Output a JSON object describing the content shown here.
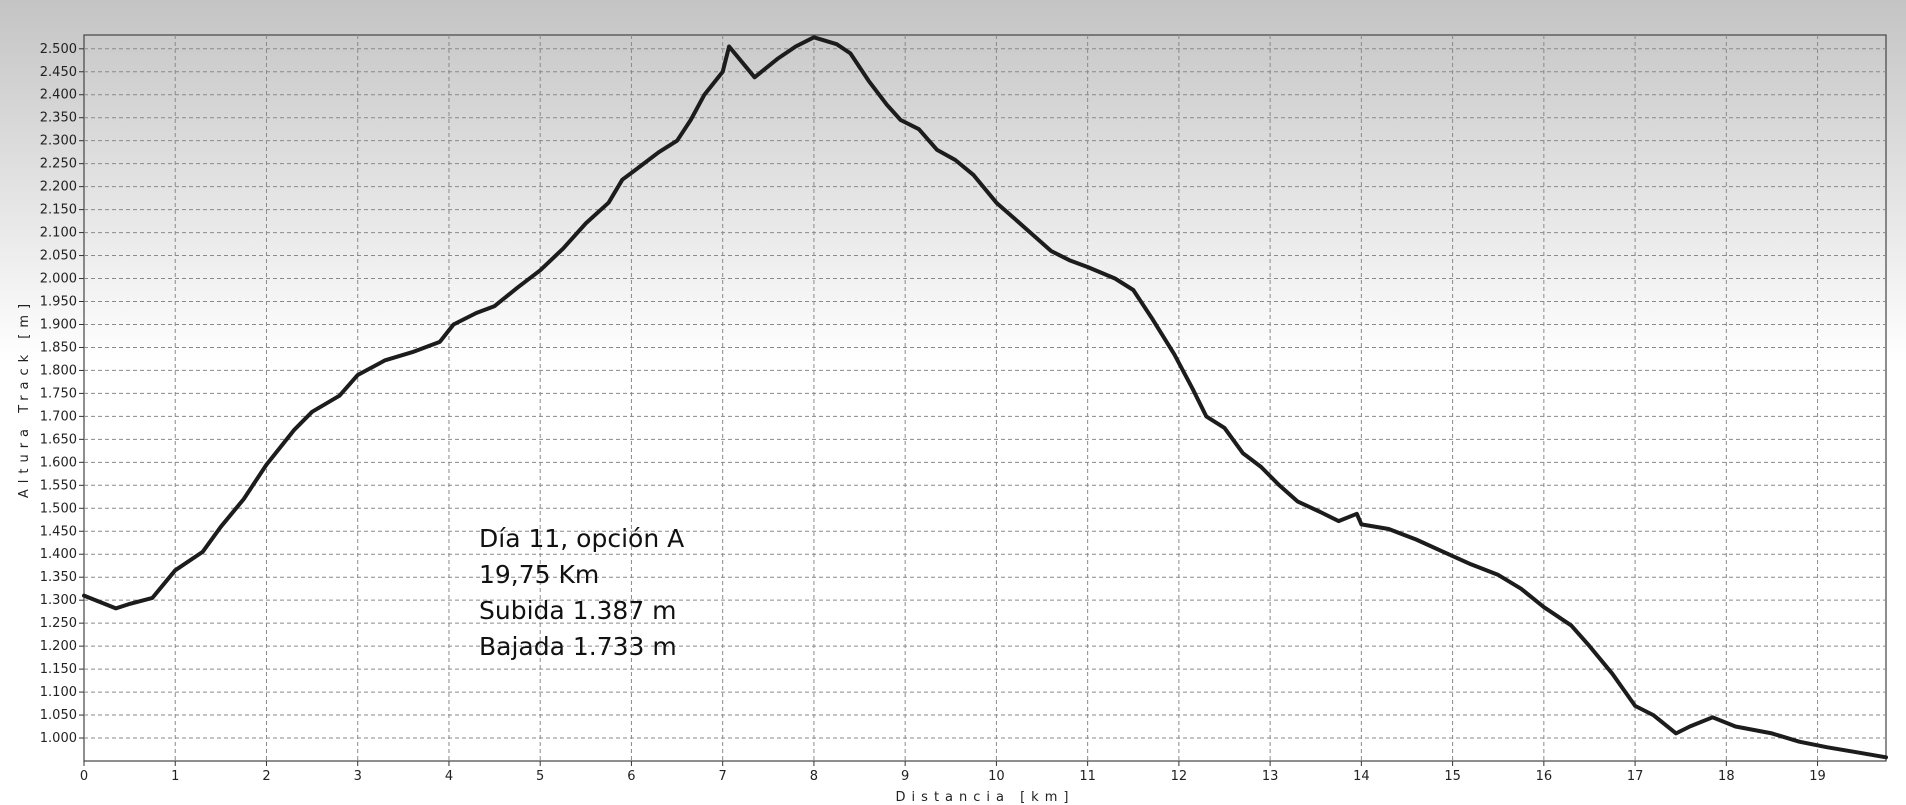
{
  "chart_data": {
    "type": "line",
    "xlabel": "Distancia [km]",
    "ylabel": "Altura Track [m]",
    "xlim": [
      0,
      19.75
    ],
    "ylim": [
      950,
      2530
    ],
    "x_ticks": [
      0,
      1,
      2,
      3,
      4,
      5,
      6,
      7,
      8,
      9,
      10,
      11,
      12,
      13,
      14,
      15,
      16,
      17,
      18,
      19
    ],
    "y_ticks": [
      1000,
      1050,
      1100,
      1150,
      1200,
      1250,
      1300,
      1350,
      1400,
      1450,
      1500,
      1550,
      1600,
      1650,
      1700,
      1750,
      1800,
      1850,
      1900,
      1950,
      2000,
      2050,
      2100,
      2150,
      2200,
      2250,
      2300,
      2350,
      2400,
      2450,
      2500
    ],
    "y_tick_labels": [
      "1.000",
      "1.050",
      "1.100",
      "1.150",
      "1.200",
      "1.250",
      "1.300",
      "1.350",
      "1.400",
      "1.450",
      "1.500",
      "1.550",
      "1.600",
      "1.650",
      "1.700",
      "1.750",
      "1.800",
      "1.850",
      "1.900",
      "1.950",
      "2.000",
      "2.050",
      "2.100",
      "2.150",
      "2.200",
      "2.250",
      "2.300",
      "2.350",
      "2.400",
      "2.450",
      "2.500"
    ],
    "grid": true,
    "background_gradient": [
      "#c4c4c4",
      "#ffffff"
    ],
    "line_color": "#1c1c1c",
    "series": [
      {
        "points": [
          [
            0,
            1310
          ],
          [
            0.35,
            1282
          ],
          [
            0.5,
            1292
          ],
          [
            0.75,
            1305
          ],
          [
            1.0,
            1365
          ],
          [
            1.3,
            1405
          ],
          [
            1.5,
            1460
          ],
          [
            1.75,
            1520
          ],
          [
            2.0,
            1595
          ],
          [
            2.3,
            1670
          ],
          [
            2.5,
            1710
          ],
          [
            2.8,
            1745
          ],
          [
            3.0,
            1790
          ],
          [
            3.3,
            1822
          ],
          [
            3.6,
            1840
          ],
          [
            3.9,
            1862
          ],
          [
            4.05,
            1900
          ],
          [
            4.3,
            1925
          ],
          [
            4.5,
            1940
          ],
          [
            4.75,
            1980
          ],
          [
            5.0,
            2018
          ],
          [
            5.25,
            2065
          ],
          [
            5.5,
            2120
          ],
          [
            5.75,
            2165
          ],
          [
            5.9,
            2215
          ],
          [
            6.1,
            2245
          ],
          [
            6.3,
            2275
          ],
          [
            6.5,
            2300
          ],
          [
            6.65,
            2345
          ],
          [
            6.8,
            2400
          ],
          [
            7.0,
            2450
          ],
          [
            7.07,
            2505
          ],
          [
            7.35,
            2438
          ],
          [
            7.6,
            2478
          ],
          [
            7.8,
            2505
          ],
          [
            8.0,
            2525
          ],
          [
            8.25,
            2510
          ],
          [
            8.4,
            2490
          ],
          [
            8.6,
            2430
          ],
          [
            8.8,
            2378
          ],
          [
            8.95,
            2345
          ],
          [
            9.15,
            2325
          ],
          [
            9.35,
            2280
          ],
          [
            9.55,
            2258
          ],
          [
            9.75,
            2225
          ],
          [
            10.0,
            2165
          ],
          [
            10.2,
            2130
          ],
          [
            10.4,
            2095
          ],
          [
            10.6,
            2060
          ],
          [
            10.8,
            2040
          ],
          [
            11.0,
            2025
          ],
          [
            11.3,
            2000
          ],
          [
            11.5,
            1975
          ],
          [
            11.7,
            1915
          ],
          [
            11.95,
            1835
          ],
          [
            12.15,
            1760
          ],
          [
            12.3,
            1700
          ],
          [
            12.5,
            1675
          ],
          [
            12.7,
            1620
          ],
          [
            12.9,
            1590
          ],
          [
            13.1,
            1550
          ],
          [
            13.3,
            1515
          ],
          [
            13.55,
            1492
          ],
          [
            13.75,
            1472
          ],
          [
            13.95,
            1488
          ],
          [
            14.0,
            1465
          ],
          [
            14.3,
            1455
          ],
          [
            14.6,
            1432
          ],
          [
            14.9,
            1405
          ],
          [
            15.2,
            1378
          ],
          [
            15.5,
            1355
          ],
          [
            15.75,
            1325
          ],
          [
            16.0,
            1285
          ],
          [
            16.3,
            1245
          ],
          [
            16.5,
            1200
          ],
          [
            16.75,
            1140
          ],
          [
            17.0,
            1070
          ],
          [
            17.2,
            1050
          ],
          [
            17.45,
            1010
          ],
          [
            17.6,
            1025
          ],
          [
            17.85,
            1045
          ],
          [
            18.1,
            1025
          ],
          [
            18.5,
            1010
          ],
          [
            18.8,
            992
          ],
          [
            19.1,
            980
          ],
          [
            19.4,
            970
          ],
          [
            19.75,
            958
          ]
        ]
      }
    ]
  },
  "annotation": {
    "lines": [
      "Día 11, opción A",
      "19,75 Km",
      "Subida 1.387 m",
      "Bajada 1.733 m"
    ]
  }
}
